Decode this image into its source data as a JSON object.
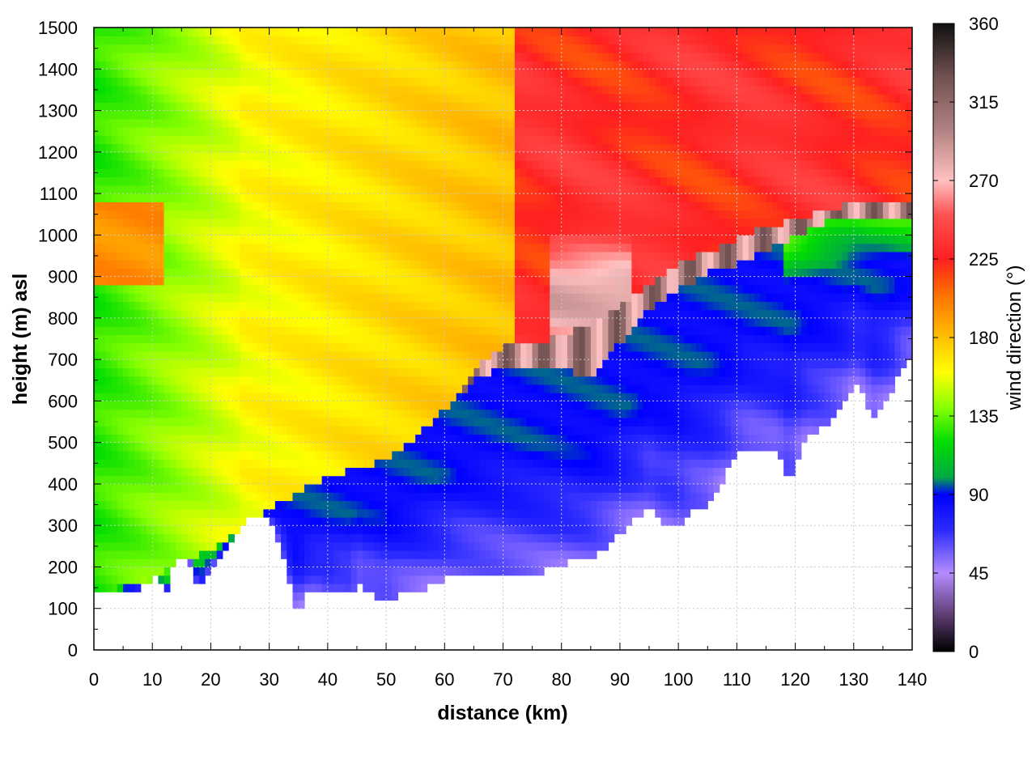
{
  "chart_data": {
    "type": "heatmap",
    "xlabel": "distance (km)",
    "ylabel": "height (m) asl",
    "colorbar_label": "wind direction (°)",
    "x_range": [
      0,
      140
    ],
    "y_range": [
      0,
      1500
    ],
    "x_ticks": [
      0,
      10,
      20,
      30,
      40,
      50,
      60,
      70,
      80,
      90,
      100,
      110,
      120,
      130,
      140
    ],
    "y_ticks": [
      0,
      100,
      200,
      300,
      400,
      500,
      600,
      700,
      800,
      900,
      1000,
      1100,
      1200,
      1300,
      1400,
      1500
    ],
    "colorbar_range": [
      0,
      360
    ],
    "colorbar_ticks": [
      0,
      45,
      90,
      135,
      180,
      225,
      270,
      315,
      360
    ],
    "grid": true,
    "colormap": [
      {
        "value": 0,
        "color": "#000000"
      },
      {
        "value": 20,
        "color": "#5a3a6e"
      },
      {
        "value": 45,
        "color": "#b48cff"
      },
      {
        "value": 70,
        "color": "#2a2aff"
      },
      {
        "value": 90,
        "color": "#0000ff"
      },
      {
        "value": 100,
        "color": "#00aa44"
      },
      {
        "value": 120,
        "color": "#00dd00"
      },
      {
        "value": 140,
        "color": "#88ff00"
      },
      {
        "value": 160,
        "color": "#ffff00"
      },
      {
        "value": 180,
        "color": "#ffc000"
      },
      {
        "value": 205,
        "color": "#ff7000"
      },
      {
        "value": 225,
        "color": "#ff2020"
      },
      {
        "value": 250,
        "color": "#ff5050"
      },
      {
        "value": 270,
        "color": "#ffc0c0"
      },
      {
        "value": 300,
        "color": "#b08080"
      },
      {
        "value": 330,
        "color": "#705050"
      },
      {
        "value": 360,
        "color": "#101010"
      }
    ],
    "terrain_profile": {
      "x": [
        0,
        2,
        5,
        8,
        10,
        11,
        12,
        14,
        16,
        17,
        18,
        19,
        20,
        22,
        25,
        28,
        30,
        31,
        33,
        34,
        35,
        36,
        38,
        40,
        42,
        44,
        45,
        46,
        48,
        50,
        52,
        55,
        58,
        60,
        62,
        65,
        70,
        75,
        80,
        85,
        88,
        90,
        93,
        95,
        97,
        100,
        102,
        105,
        108,
        110,
        112,
        115,
        117,
        119,
        120,
        122,
        124,
        126,
        128,
        130,
        132,
        133,
        135,
        137,
        138,
        140
      ],
      "y": [
        130,
        150,
        148,
        150,
        155,
        200,
        125,
        220,
        230,
        190,
        145,
        170,
        200,
        230,
        300,
        335,
        310,
        280,
        200,
        110,
        90,
        130,
        150,
        130,
        140,
        130,
        170,
        150,
        135,
        115,
        130,
        140,
        160,
        170,
        180,
        180,
        175,
        180,
        205,
        225,
        255,
        280,
        320,
        350,
        310,
        290,
        330,
        350,
        420,
        470,
        490,
        480,
        470,
        400,
        450,
        520,
        530,
        550,
        580,
        640,
        620,
        560,
        590,
        640,
        680,
        700
      ]
    },
    "layer_tops": {
      "x": [
        0,
        10,
        20,
        30,
        40,
        50,
        55,
        60,
        65,
        70,
        75,
        80,
        85,
        90,
        95,
        100,
        105,
        110,
        115,
        120,
        125,
        130,
        135,
        140
      ],
      "easterly_top_m": [
        130,
        180,
        240,
        340,
        420,
        460,
        510,
        580,
        650,
        690,
        690,
        680,
        660,
        740,
        820,
        870,
        910,
        930,
        960,
        1000,
        1030,
        1050,
        1050,
        1050
      ],
      "veer_top_m": [
        130,
        180,
        240,
        340,
        420,
        460,
        510,
        580,
        680,
        730,
        740,
        760,
        790,
        830,
        880,
        930,
        960,
        990,
        1020,
        1040,
        1060,
        1080,
        1080,
        1080
      ]
    },
    "upper_sector_boundaries_km": {
      "green_to_yellow": 25,
      "yellow_to_red": 72
    }
  }
}
